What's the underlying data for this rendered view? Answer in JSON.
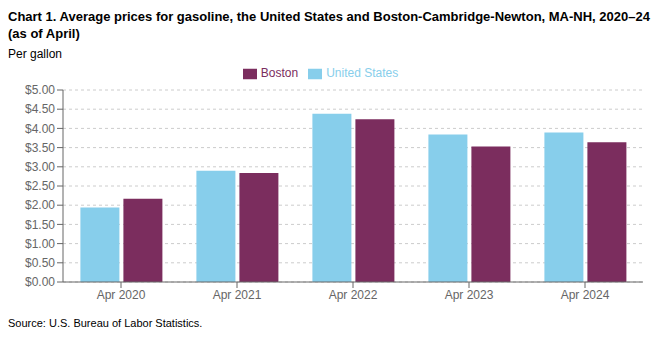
{
  "chart_data": {
    "type": "bar",
    "title": "Chart 1. Average prices for gasoline, the United States and Boston-Cambridge-Newton, MA-NH, 2020–24 (as of April)",
    "ylabel": "Per gallon",
    "source": "Source: U.S. Bureau of Labor Statistics.",
    "categories": [
      "Apr 2020",
      "Apr 2021",
      "Apr 2022",
      "Apr 2023",
      "Apr 2024"
    ],
    "series": [
      {
        "name": "United States",
        "color": "#87CEEB",
        "values": [
          1.94,
          2.9,
          4.38,
          3.84,
          3.89
        ]
      },
      {
        "name": "Boston",
        "color": "#7B2D5E",
        "values": [
          2.17,
          2.84,
          4.24,
          3.53,
          3.64
        ]
      }
    ],
    "ylim": [
      0,
      5.0
    ],
    "yticks": [
      {
        "value": 0.0,
        "label": "$0.00"
      },
      {
        "value": 0.5,
        "label": "$0.50"
      },
      {
        "value": 1.0,
        "label": "$1.00"
      },
      {
        "value": 1.5,
        "label": "$1.50"
      },
      {
        "value": 2.0,
        "label": "$2.00"
      },
      {
        "value": 2.5,
        "label": "$2.50"
      },
      {
        "value": 3.0,
        "label": "$3.00"
      },
      {
        "value": 3.5,
        "label": "$3.50"
      },
      {
        "value": 4.0,
        "label": "$4.00"
      },
      {
        "value": 4.5,
        "label": "$4.50"
      },
      {
        "value": 5.0,
        "label": "$5.00"
      }
    ],
    "grid": true,
    "legend": "top"
  }
}
